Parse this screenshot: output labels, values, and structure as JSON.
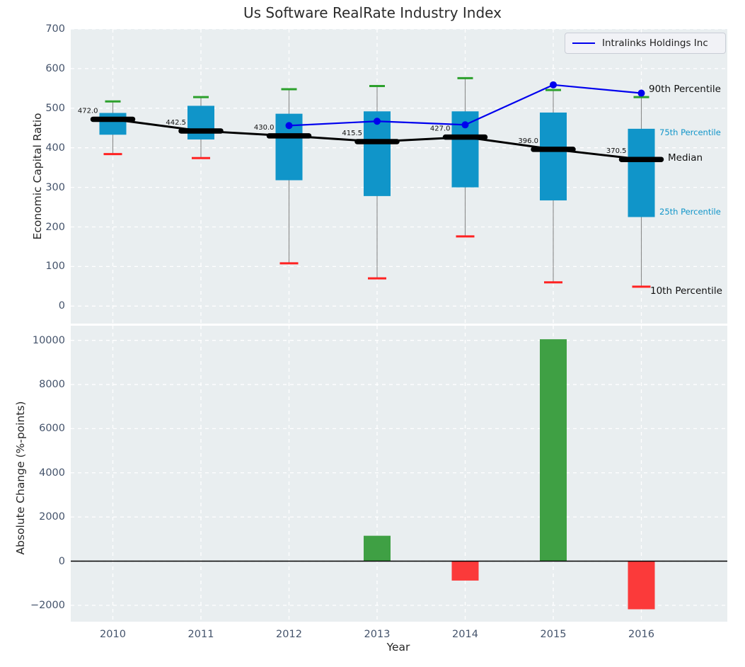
{
  "figure_title": "Us Software RealRate Industry Index",
  "colors": {
    "plot_background": "#e9eef0",
    "grid": "#ffffff",
    "tick_label": "#44536b",
    "box_fill": "#1095c9",
    "whisker_line": "#8a8a8a",
    "cap_high_green": "#2ca02c",
    "cap_low_red": "#ff2222",
    "median_black": "#000000",
    "company_line_blue": "#0000ee",
    "bar_positive_green": "#3fa044",
    "bar_negative_red": "#fb3a3a",
    "annotation_cyan": "#1095c9"
  },
  "chart_data": [
    {
      "type": "boxplot",
      "title": "Us Software RealRate Industry Index",
      "ylabel": "Economic Capital Ratio",
      "ylim": [
        -44,
        700
      ],
      "yticks": [
        700,
        600,
        500,
        400,
        300,
        200,
        100,
        0
      ],
      "categories": [
        "2010",
        "2011",
        "2012",
        "2013",
        "2014",
        "2015",
        "2016"
      ],
      "grid": true,
      "legend": {
        "label": "Intralinks Holdings Inc",
        "position": "upper right"
      },
      "boxes": [
        {
          "year": "2010",
          "p10": 384,
          "p25": 433,
          "median": 472.0,
          "p75": 488,
          "p90": 517,
          "median_label": "472.0"
        },
        {
          "year": "2011",
          "p10": 374,
          "p25": 421,
          "median": 442.5,
          "p75": 506,
          "p90": 528,
          "median_label": "442.5"
        },
        {
          "year": "2012",
          "p10": 108,
          "p25": 318,
          "median": 430.0,
          "p75": 486,
          "p90": 548,
          "median_label": "430.0"
        },
        {
          "year": "2013",
          "p10": 70,
          "p25": 278,
          "median": 415.5,
          "p75": 492,
          "p90": 556,
          "median_label": "415.5"
        },
        {
          "year": "2014",
          "p10": 176,
          "p25": 300,
          "median": 427.0,
          "p75": 492,
          "p90": 576,
          "median_label": "427.0"
        },
        {
          "year": "2015",
          "p10": 60,
          "p25": 267,
          "median": 396.0,
          "p75": 489,
          "p90": 546,
          "median_label": "396.0"
        },
        {
          "year": "2016",
          "p10": 49,
          "p25": 225,
          "median": 370.5,
          "p75": 448,
          "p90": 528,
          "median_label": "370.5"
        }
      ],
      "series": [
        {
          "name": "Intralinks Holdings Inc",
          "x": [
            "2012",
            "2013",
            "2014",
            "2015",
            "2016"
          ],
          "values": [
            456,
            467,
            458,
            559,
            538
          ]
        }
      ],
      "annotations": [
        {
          "text": "90th Percentile",
          "style": "black"
        },
        {
          "text": "75th Percentile",
          "style": "cyan"
        },
        {
          "text": "Median",
          "style": "black"
        },
        {
          "text": "25th Percentile",
          "style": "cyan"
        },
        {
          "text": "10th Percentile",
          "style": "black"
        }
      ]
    },
    {
      "type": "bar",
      "ylabel": "Absolute Change (%-points)",
      "xlabel": "Year",
      "ylim": [
        -2750,
        10660
      ],
      "yticks": [
        10000,
        8000,
        6000,
        4000,
        2000,
        0,
        -2000
      ],
      "categories": [
        "2010",
        "2011",
        "2012",
        "2013",
        "2014",
        "2015",
        "2016"
      ],
      "values": [
        null,
        null,
        null,
        1150,
        -880,
        10050,
        -2180
      ]
    }
  ]
}
